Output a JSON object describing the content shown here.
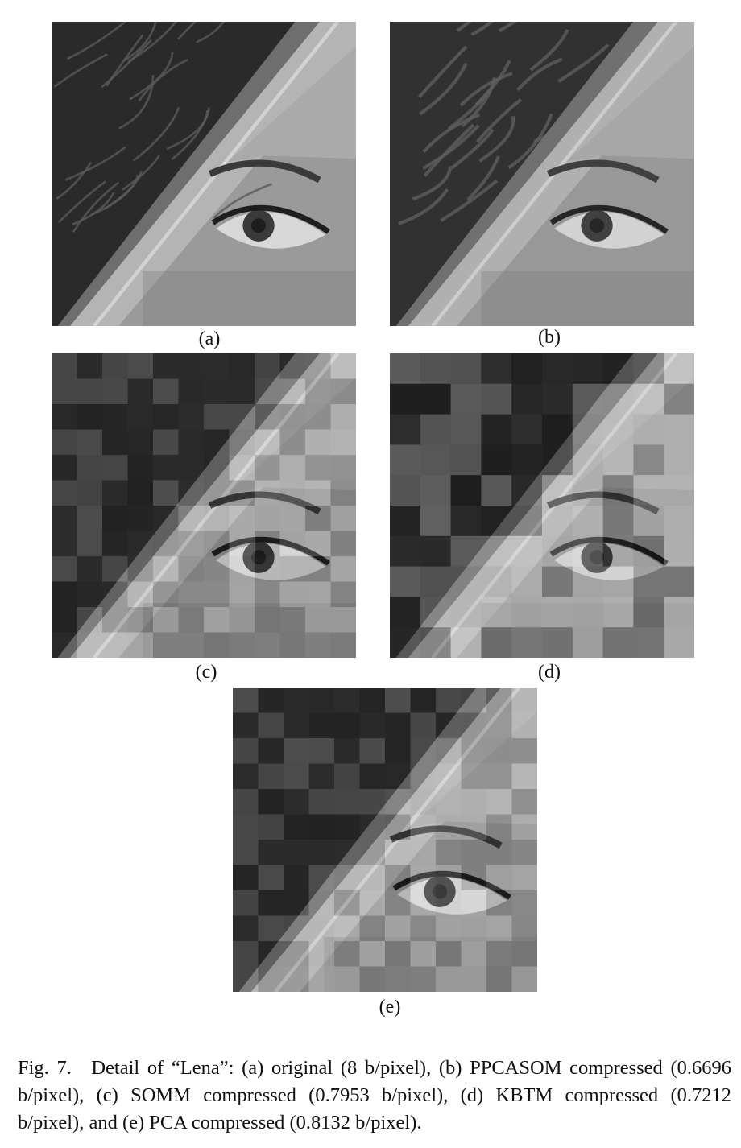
{
  "figure": {
    "panels": [
      {
        "id": "a",
        "label": "(a)",
        "style": "smooth"
      },
      {
        "id": "b",
        "label": "(b)",
        "style": "soft"
      },
      {
        "id": "c",
        "label": "(c)",
        "style": "blocky"
      },
      {
        "id": "d",
        "label": "(d)",
        "style": "very-blocky"
      },
      {
        "id": "e",
        "label": "(e)",
        "style": "blocky"
      }
    ],
    "caption": "Fig. 7. Detail of “Lena”: (a) original (8 b/pixel), (b) PPCASOM compressed (0.6696 b/pixel), (c) SOMM compressed (0.7953 b/pixel), (d) KBTM compressed (0.7212 b/pixel), and (e) PCA compressed (0.8132 b/pixel)."
  },
  "colors": {
    "hair": "#2a2a2a",
    "hat_brim": "#b4b4b4",
    "skin": "#9a9a9a",
    "eye_dark": "#1e1e1e",
    "eye_white": "#d8d8d8"
  }
}
